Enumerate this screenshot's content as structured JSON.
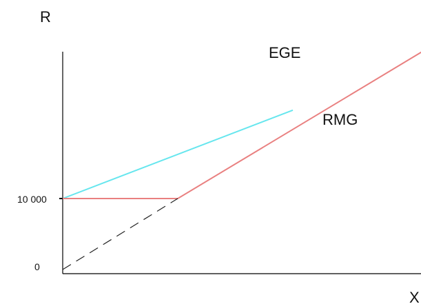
{
  "chart_data": {
    "type": "line",
    "title": "",
    "xlabel": "X",
    "ylabel": "R",
    "y_ticks": [
      {
        "value": 0,
        "label": "0"
      },
      {
        "value": 10000,
        "label": "10 000"
      }
    ],
    "series": [
      {
        "name": "EGE",
        "color": "#66e6ee",
        "style": "solid",
        "x": [
          0,
          1
        ],
        "y": [
          10000,
          22450
        ]
      },
      {
        "name": "RMG",
        "color": "#e98080",
        "style": "solid",
        "x": [
          0,
          0.5,
          1.57
        ],
        "y": [
          10000,
          10000,
          30840
        ]
      },
      {
        "name": "",
        "color": "#222222",
        "style": "dashed",
        "x": [
          0,
          0.5
        ],
        "y": [
          0,
          10000
        ]
      }
    ]
  }
}
